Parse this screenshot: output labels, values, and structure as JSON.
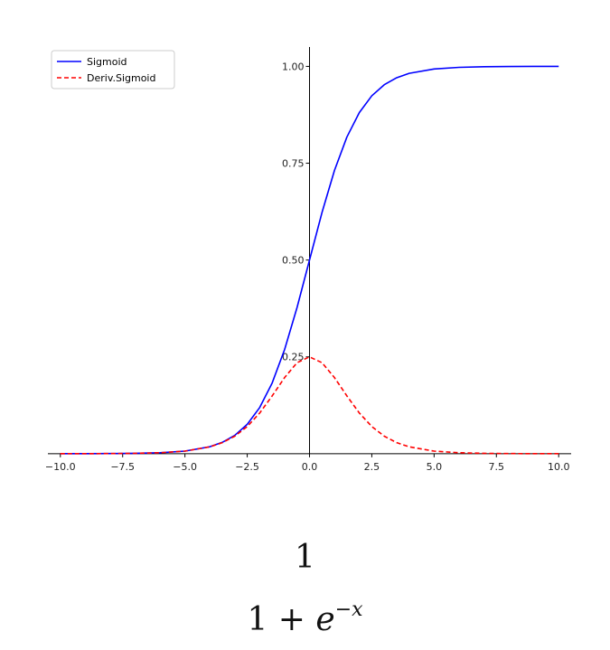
{
  "chart_data": {
    "type": "line",
    "title": "",
    "xlabel": "",
    "ylabel": "",
    "xlim": [
      -10.5,
      10.5
    ],
    "ylim": [
      -0.005,
      1.05
    ],
    "x_ticks": [
      "−10.0",
      "−7.5",
      "−5.0",
      "−2.5",
      "0.0",
      "2.5",
      "5.0",
      "7.5",
      "10.0"
    ],
    "x_tick_values": [
      -10,
      -7.5,
      -5,
      -2.5,
      0,
      2.5,
      5,
      7.5,
      10
    ],
    "y_ticks": [
      "0.25",
      "0.50",
      "0.75",
      "1.00"
    ],
    "y_tick_values": [
      0.25,
      0.5,
      0.75,
      1.0
    ],
    "spines": "centered at origin",
    "grid": false,
    "legend_position": "upper-left",
    "series": [
      {
        "name": "Sigmoid",
        "color": "#0000ff",
        "style": "solid",
        "x": [
          -10,
          -9,
          -8,
          -7,
          -6,
          -5,
          -4,
          -3.5,
          -3,
          -2.5,
          -2,
          -1.5,
          -1,
          -0.5,
          0,
          0.5,
          1,
          1.5,
          2,
          2.5,
          3,
          3.5,
          4,
          5,
          6,
          7,
          8,
          9,
          10
        ],
        "y": [
          4.54e-05,
          0.000123,
          0.000335,
          0.000911,
          0.00247,
          0.00669,
          0.018,
          0.0293,
          0.0474,
          0.0759,
          0.1192,
          0.1824,
          0.2689,
          0.3775,
          0.5,
          0.6225,
          0.7311,
          0.8176,
          0.8808,
          0.9241,
          0.9526,
          0.9707,
          0.982,
          0.9933,
          0.9975,
          0.9991,
          0.9997,
          0.9999,
          1.0
        ]
      },
      {
        "name": "Deriv.Sigmoid",
        "color": "#ff0000",
        "style": "dashed",
        "x": [
          -10,
          -9,
          -8,
          -7,
          -6,
          -5,
          -4,
          -3.5,
          -3,
          -2.5,
          -2,
          -1.5,
          -1,
          -0.5,
          0,
          0.5,
          1,
          1.5,
          2,
          2.5,
          3,
          3.5,
          4,
          5,
          6,
          7,
          8,
          9,
          10
        ],
        "y": [
          4.54e-05,
          0.000123,
          0.000335,
          0.00091,
          0.00247,
          0.00665,
          0.0177,
          0.0285,
          0.0452,
          0.0701,
          0.105,
          0.1491,
          0.1966,
          0.235,
          0.25,
          0.235,
          0.1966,
          0.1491,
          0.105,
          0.0701,
          0.0452,
          0.0285,
          0.0177,
          0.00665,
          0.00247,
          0.00091,
          0.000335,
          0.000123,
          4.54e-05
        ]
      }
    ]
  },
  "formula": {
    "numerator": "1",
    "denominator_base": "1 + ",
    "denominator_e": "e",
    "denominator_exponent": "−x"
  }
}
